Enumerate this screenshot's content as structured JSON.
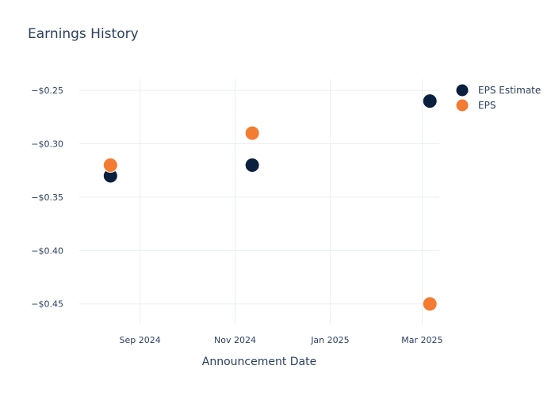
{
  "chart_data": {
    "type": "scatter",
    "title": "Earnings History",
    "xlabel": "Announcement Date",
    "ylabel": "",
    "x_ticks": [
      "Sep 2024",
      "Nov 2024",
      "Jan 2025",
      "Mar 2025"
    ],
    "x_tick_dates": [
      "2024-09-01",
      "2024-11-01",
      "2025-01-01",
      "2025-03-01"
    ],
    "xlim": [
      "2024-07-24",
      "2025-03-12"
    ],
    "y_ticks": [
      "−$0.25",
      "−$0.30",
      "−$0.35",
      "−$0.40",
      "−$0.45"
    ],
    "y_tick_values": [
      -0.25,
      -0.3,
      -0.35,
      -0.4,
      -0.45
    ],
    "ylim": [
      -0.4695,
      -0.2395
    ],
    "grid": true,
    "legend_position": "top-right",
    "series": [
      {
        "name": "EPS Estimate",
        "color": "#0b1f3f",
        "points": [
          {
            "x": "2024-08-13",
            "y": -0.33
          },
          {
            "x": "2024-11-12",
            "y": -0.32
          },
          {
            "x": "2025-03-06",
            "y": -0.26
          }
        ]
      },
      {
        "name": "EPS",
        "color": "#f47b32",
        "points": [
          {
            "x": "2024-08-13",
            "y": -0.32
          },
          {
            "x": "2024-11-12",
            "y": -0.29
          },
          {
            "x": "2025-03-06",
            "y": -0.45
          }
        ]
      }
    ]
  }
}
